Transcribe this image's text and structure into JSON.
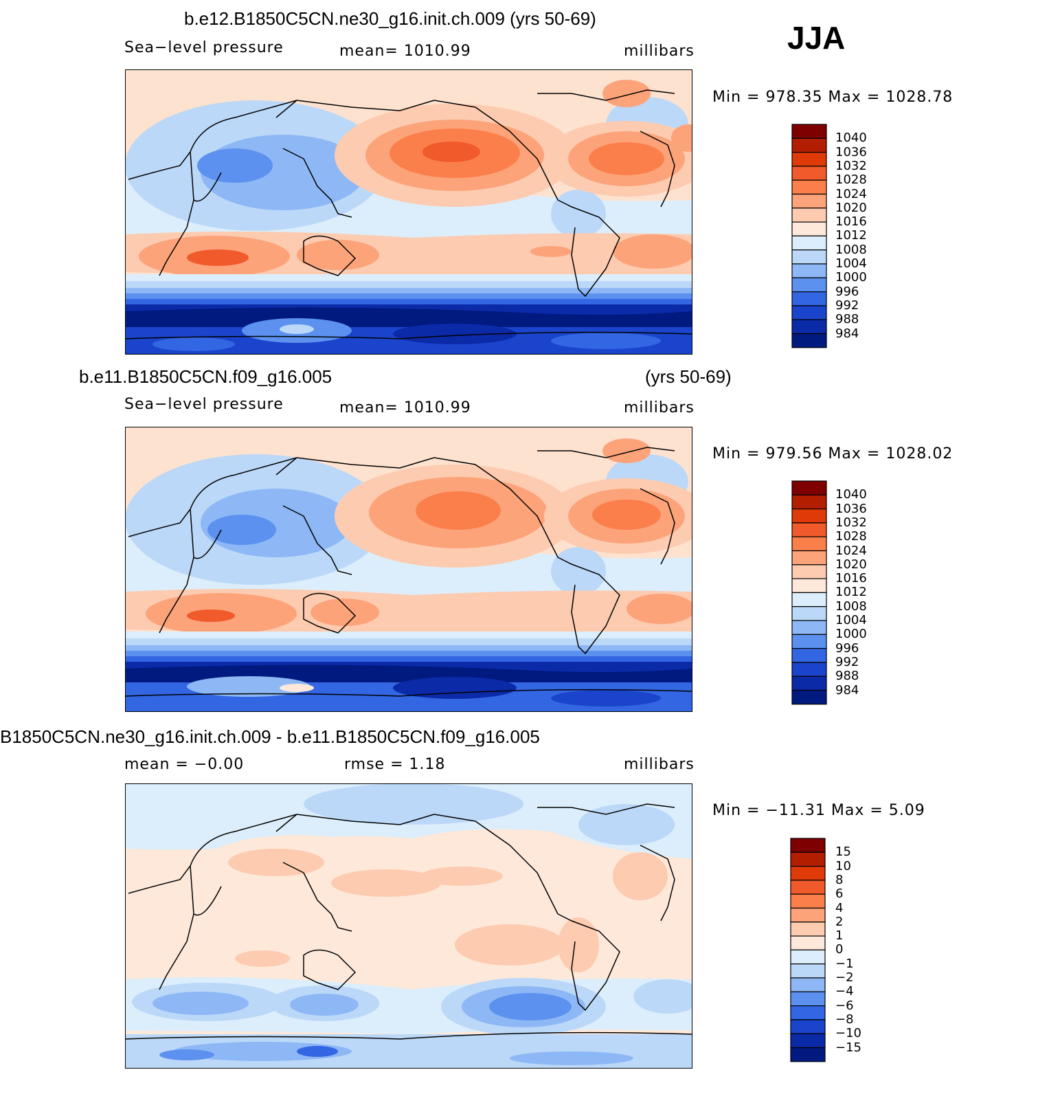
{
  "season": "JJA",
  "panels": [
    {
      "title": "b.e12.B1850C5CN.ne30_g16.init.ch.009 (yrs 50-69)",
      "left_label": "Sea−level  pressure",
      "center_label": "mean=  1010.99",
      "right_label": "millibars",
      "minmax": "Min  =  978.35  Max  =  1028.78",
      "levels": [
        "1040",
        "1036",
        "1032",
        "1028",
        "1024",
        "1020",
        "1016",
        "1012",
        "1008",
        "1004",
        "1000",
        "996",
        "992",
        "988",
        "984"
      ]
    },
    {
      "title_left": "b.e11.B1850C5CN.f09_g16.005",
      "title_right": "(yrs 50-69)",
      "left_label": "Sea−level  pressure",
      "center_label": "mean=  1010.99",
      "right_label": "millibars",
      "minmax": "Min  =  979.56  Max  =  1028.02",
      "levels": [
        "1040",
        "1036",
        "1032",
        "1028",
        "1024",
        "1020",
        "1016",
        "1012",
        "1008",
        "1004",
        "1000",
        "996",
        "992",
        "988",
        "984"
      ]
    },
    {
      "title": "B1850C5CN.ne30_g16.init.ch.009 - b.e11.B1850C5CN.f09_g16.005",
      "left_label": "mean  =   −0.00",
      "center_label": "rmse  =      1.18",
      "right_label": "millibars",
      "minmax": "Min  =  −11.31  Max  =      5.09",
      "levels": [
        "15",
        "10",
        "8",
        "6",
        "4",
        "2",
        "1",
        "0",
        "−1",
        "−2",
        "−4",
        "−6",
        "−8",
        "−10",
        "−15"
      ]
    }
  ],
  "colors": {
    "abs_palette": [
      "#7f0000",
      "#b31d00",
      "#e03a08",
      "#f15a2a",
      "#fb7f4b",
      "#fca37a",
      "#fdcbb0",
      "#fde8da",
      "#dceefb",
      "#bcd8f8",
      "#8db8f5",
      "#5c91ef",
      "#3366e3",
      "#1a44cc",
      "#0b2aa8",
      "#001a80"
    ],
    "diff_palette": [
      "#7f0000",
      "#b31d00",
      "#e03a08",
      "#f15a2a",
      "#fb7f4b",
      "#fca37a",
      "#fdcbb0",
      "#fde8da",
      "#dceefb",
      "#bcd8f8",
      "#8db8f5",
      "#5c91ef",
      "#3366e3",
      "#1a44cc",
      "#0b2aa8",
      "#001a80"
    ]
  },
  "chart_data": [
    {
      "type": "heatmap",
      "title": "b.e12.B1850C5CN.ne30_g16.init.ch.009 (yrs 50-69)",
      "variable": "Sea-level pressure",
      "units": "millibars",
      "mean": 1010.99,
      "min": 978.35,
      "max": 1028.78,
      "contour_levels": [
        984,
        988,
        992,
        996,
        1000,
        1004,
        1008,
        1012,
        1016,
        1020,
        1024,
        1028,
        1032,
        1036,
        1040
      ]
    },
    {
      "type": "heatmap",
      "title": "b.e11.B1850C5CN.f09_g16.005 (yrs 50-69)",
      "variable": "Sea-level pressure",
      "units": "millibars",
      "mean": 1010.99,
      "min": 979.56,
      "max": 1028.02,
      "contour_levels": [
        984,
        988,
        992,
        996,
        1000,
        1004,
        1008,
        1012,
        1016,
        1020,
        1024,
        1028,
        1032,
        1036,
        1040
      ]
    },
    {
      "type": "heatmap",
      "title": "B1850C5CN.ne30_g16.init.ch.009 - b.e11.B1850C5CN.f09_g16.005",
      "units": "millibars",
      "mean": -0.0,
      "rmse": 1.18,
      "min": -11.31,
      "max": 5.09,
      "contour_levels": [
        -15,
        -10,
        -8,
        -6,
        -4,
        -2,
        -1,
        0,
        1,
        2,
        4,
        6,
        8,
        10,
        15
      ]
    }
  ]
}
